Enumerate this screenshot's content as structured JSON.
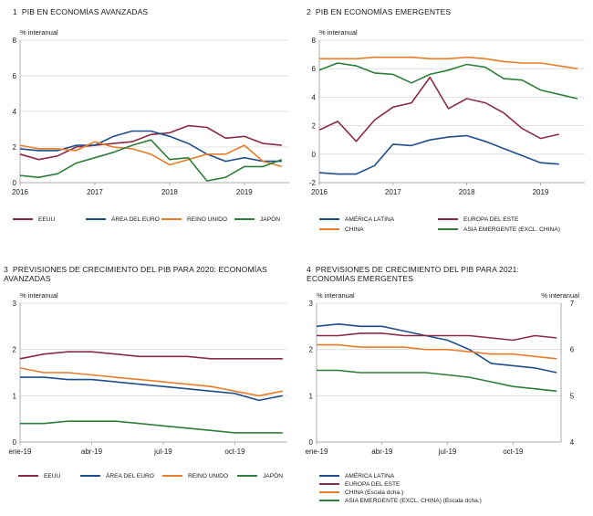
{
  "charts": [
    {
      "number": "1",
      "title": "PIB EN ECONOMÍAS AVANZADAS",
      "unit_left": "% interanual",
      "unit_right": "",
      "chart_data": {
        "type": "line",
        "x_ticks": [
          "2016",
          "2017",
          "2018",
          "2019"
        ],
        "yleft_ticks": [
          "0",
          "2",
          "4",
          "6",
          "8"
        ],
        "ylim": [
          0,
          8
        ],
        "series": [
          {
            "name": "EEUU",
            "color": "#8b2a44",
            "x": [
              2016.0,
              2016.25,
              2016.5,
              2016.75,
              2017.0,
              2017.25,
              2017.5,
              2017.75,
              2018.0,
              2018.25,
              2018.5,
              2018.75,
              2019.0,
              2019.25,
              2019.5
            ],
            "values": [
              1.6,
              1.3,
              1.5,
              2.0,
              2.1,
              2.2,
              2.3,
              2.7,
              2.8,
              3.2,
              3.1,
              2.5,
              2.6,
              2.2,
              2.1
            ]
          },
          {
            "name": "ÁREA DEL EURO",
            "color": "#1f4e8c",
            "x": [
              2016.0,
              2016.25,
              2016.5,
              2016.75,
              2017.0,
              2017.25,
              2017.5,
              2017.75,
              2018.0,
              2018.25,
              2018.5,
              2018.75,
              2019.0,
              2019.25,
              2019.5
            ],
            "values": [
              1.9,
              1.8,
              1.8,
              2.1,
              2.1,
              2.6,
              2.9,
              2.9,
              2.6,
              2.2,
              1.6,
              1.2,
              1.4,
              1.2,
              1.2
            ]
          },
          {
            "name": "REINO UNIDO",
            "color": "#e87d2a",
            "x": [
              2016.0,
              2016.25,
              2016.5,
              2016.75,
              2017.0,
              2017.25,
              2017.5,
              2017.75,
              2018.0,
              2018.25,
              2018.5,
              2018.75,
              2019.0,
              2019.25,
              2019.5
            ],
            "values": [
              2.1,
              1.9,
              1.9,
              1.8,
              2.3,
              2.0,
              1.9,
              1.6,
              1.0,
              1.3,
              1.6,
              1.6,
              2.1,
              1.2,
              0.9
            ]
          },
          {
            "name": "JAPÓN",
            "color": "#2f7d3a",
            "x": [
              2016.0,
              2016.25,
              2016.5,
              2016.75,
              2017.0,
              2017.25,
              2017.5,
              2017.75,
              2018.0,
              2018.25,
              2018.5,
              2018.75,
              2019.0,
              2019.25,
              2019.5
            ],
            "values": [
              0.4,
              0.3,
              0.5,
              1.1,
              1.4,
              1.7,
              2.1,
              2.4,
              1.3,
              1.4,
              0.1,
              0.3,
              0.9,
              0.9,
              1.3
            ]
          }
        ]
      },
      "legend": [
        "EEUU",
        "ÁREA DEL EURO",
        "REINO UNIDO",
        "JAPÓN"
      ]
    },
    {
      "number": "2",
      "title": "PIB EN ECONOMÍAS EMERGENTES",
      "unit_left": "% interanual",
      "unit_right": "",
      "chart_data": {
        "type": "line",
        "x_ticks": [
          "2016",
          "2017",
          "2018",
          "2019"
        ],
        "yleft_ticks": [
          "-2",
          "0",
          "2",
          "4",
          "6",
          "8"
        ],
        "ylim": [
          -2,
          8
        ],
        "series": [
          {
            "name": "AMÉRICA LATINA",
            "color": "#1f4e8c",
            "x": [
              2016.0,
              2016.25,
              2016.5,
              2016.75,
              2017.0,
              2017.25,
              2017.5,
              2017.75,
              2018.0,
              2018.25,
              2018.5,
              2018.75,
              2019.0,
              2019.25
            ],
            "values": [
              -1.3,
              -1.4,
              -1.4,
              -0.8,
              0.7,
              0.6,
              1.0,
              1.2,
              1.3,
              0.9,
              0.4,
              -0.1,
              -0.6,
              -0.7
            ]
          },
          {
            "name": "EUROPA DEL ESTE",
            "color": "#8b2a44",
            "x": [
              2016.0,
              2016.25,
              2016.5,
              2016.75,
              2017.0,
              2017.25,
              2017.5,
              2017.75,
              2018.0,
              2018.25,
              2018.5,
              2018.75,
              2019.0,
              2019.25
            ],
            "values": [
              1.7,
              2.3,
              0.9,
              2.4,
              3.3,
              3.6,
              5.4,
              3.2,
              3.9,
              3.6,
              2.9,
              1.8,
              1.1,
              1.4
            ]
          },
          {
            "name": "CHINA",
            "color": "#e87d2a",
            "x": [
              2016.0,
              2016.25,
              2016.5,
              2016.75,
              2017.0,
              2017.25,
              2017.5,
              2017.75,
              2018.0,
              2018.25,
              2018.5,
              2018.75,
              2019.0,
              2019.25,
              2019.5
            ],
            "values": [
              6.7,
              6.7,
              6.7,
              6.8,
              6.8,
              6.8,
              6.7,
              6.7,
              6.8,
              6.7,
              6.5,
              6.4,
              6.4,
              6.2,
              6.0
            ]
          },
          {
            "name": "ASIA EMERGENTE (EXCL. CHINA)",
            "color": "#2f7d3a",
            "x": [
              2016.0,
              2016.25,
              2016.5,
              2016.75,
              2017.0,
              2017.25,
              2017.5,
              2017.75,
              2018.0,
              2018.25,
              2018.5,
              2018.75,
              2019.0,
              2019.25,
              2019.5
            ],
            "values": [
              5.9,
              6.4,
              6.2,
              5.7,
              5.6,
              5.0,
              5.6,
              5.9,
              6.3,
              6.1,
              5.3,
              5.2,
              4.5,
              4.2,
              3.9
            ]
          }
        ]
      },
      "legend": [
        "AMÉRICA LATINA",
        "EUROPA DEL ESTE",
        "CHINA",
        "ASIA EMERGENTE (EXCL. CHINA)"
      ]
    },
    {
      "number": "3",
      "title": "PREVISIONES DE CRECIMIENTO DEL PIB PARA 2020: ECONOMÍAS AVANZADAS",
      "unit_left": "% interanual",
      "unit_right": "",
      "chart_data": {
        "type": "line",
        "x_ticks": [
          "ene-19",
          "abr-19",
          "jul-19",
          "oct-19"
        ],
        "yleft_ticks": [
          "0",
          "1",
          "2",
          "3"
        ],
        "ylim": [
          0,
          3
        ],
        "series": [
          {
            "name": "EEUU",
            "color": "#8b2a44",
            "x": [
              0,
              1,
              2,
              3,
              4,
              5,
              6,
              7,
              8,
              9,
              10,
              11
            ],
            "values": [
              1.8,
              1.9,
              1.95,
              1.95,
              1.9,
              1.85,
              1.85,
              1.85,
              1.8,
              1.8,
              1.8,
              1.8
            ]
          },
          {
            "name": "ÁREA DEL EURO",
            "color": "#1f4e8c",
            "x": [
              0,
              1,
              2,
              3,
              4,
              5,
              6,
              7,
              8,
              9,
              10,
              11
            ],
            "values": [
              1.4,
              1.4,
              1.35,
              1.35,
              1.3,
              1.25,
              1.2,
              1.15,
              1.1,
              1.05,
              0.9,
              1.0
            ]
          },
          {
            "name": "REINO UNIDO",
            "color": "#e87d2a",
            "x": [
              0,
              1,
              2,
              3,
              4,
              5,
              6,
              7,
              8,
              9,
              10,
              11
            ],
            "values": [
              1.6,
              1.5,
              1.5,
              1.45,
              1.4,
              1.35,
              1.3,
              1.25,
              1.2,
              1.1,
              1.0,
              1.1
            ]
          },
          {
            "name": "JAPÓN",
            "color": "#2f7d3a",
            "x": [
              0,
              1,
              2,
              3,
              4,
              5,
              6,
              7,
              8,
              9,
              10,
              11
            ],
            "values": [
              0.4,
              0.4,
              0.45,
              0.45,
              0.45,
              0.4,
              0.35,
              0.3,
              0.25,
              0.2,
              0.2,
              0.2
            ]
          }
        ]
      },
      "legend": [
        "EEUU",
        "ÁREA DEL EURO",
        "REINO UNIDO",
        "JAPÓN"
      ]
    },
    {
      "number": "4",
      "title": "PREVISIONES DE CRECIMIENTO DEL PIB PARA 2021: ECONOMÍAS EMERGENTES",
      "unit_left": "% interanual",
      "unit_right": "% interanual",
      "chart_data": {
        "type": "line",
        "x_ticks": [
          "ene-19",
          "abr-19",
          "jul-19",
          "oct-19"
        ],
        "yleft_ticks": [
          "0",
          "1",
          "2",
          "3"
        ],
        "yright_ticks": [
          "4",
          "5",
          "6",
          "7"
        ],
        "ylim": [
          0,
          3
        ],
        "ylim_right": [
          4,
          7
        ],
        "series": [
          {
            "name": "AMÉRICA LATINA",
            "axis": "left",
            "color": "#1f4e8c",
            "x": [
              0,
              1,
              2,
              3,
              4,
              5,
              6,
              7,
              8,
              9,
              10,
              11
            ],
            "values": [
              2.5,
              2.55,
              2.5,
              2.5,
              2.4,
              2.3,
              2.2,
              2.0,
              1.7,
              1.65,
              1.6,
              1.5
            ]
          },
          {
            "name": "EUROPA DEL ESTE",
            "axis": "left",
            "color": "#8b2a44",
            "x": [
              0,
              1,
              2,
              3,
              4,
              5,
              6,
              7,
              8,
              9,
              10,
              11
            ],
            "values": [
              2.3,
              2.3,
              2.35,
              2.35,
              2.3,
              2.3,
              2.3,
              2.3,
              2.25,
              2.2,
              2.3,
              2.25
            ]
          },
          {
            "name": "CHINA (Escala dcha.)",
            "axis": "right",
            "color": "#e87d2a",
            "x": [
              0,
              1,
              2,
              3,
              4,
              5,
              6,
              7,
              8,
              9,
              10,
              11
            ],
            "values": [
              6.1,
              6.1,
              6.05,
              6.05,
              6.05,
              6.0,
              6.0,
              5.95,
              5.9,
              5.9,
              5.85,
              5.8
            ]
          },
          {
            "name": "ASIA EMERGENTE (EXCL. CHINA) (Escala dcha.)",
            "axis": "right",
            "color": "#2f7d3a",
            "x": [
              0,
              1,
              2,
              3,
              4,
              5,
              6,
              7,
              8,
              9,
              10,
              11
            ],
            "values": [
              5.55,
              5.55,
              5.5,
              5.5,
              5.5,
              5.5,
              5.45,
              5.4,
              5.3,
              5.2,
              5.15,
              5.1
            ]
          }
        ]
      },
      "legend": [
        "AMÉRICA LATINA",
        "EUROPA DEL ESTE",
        "CHINA (Escala dcha.)",
        "ASIA EMERGENTE (EXCL. CHINA) (Escala dcha.)"
      ]
    }
  ]
}
